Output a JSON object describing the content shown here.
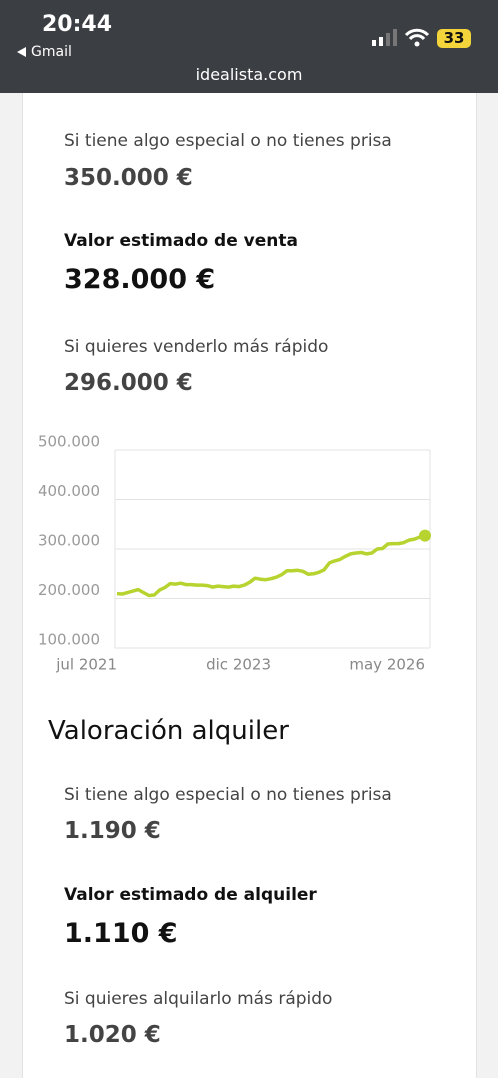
{
  "status_bar": {
    "time": "20:44",
    "back_app": "Gmail",
    "battery": "33",
    "url": "idealista.com"
  },
  "sale": {
    "items": [
      {
        "label": "Si tiene algo especial o no tienes prisa",
        "price": "350.000 €"
      },
      {
        "label": "Valor estimado de venta",
        "price": "328.000 €"
      },
      {
        "label": "Si quieres venderlo más rápido",
        "price": "296.000 €"
      }
    ]
  },
  "chart": {
    "type": "line",
    "color": "#b6d330",
    "grid": true,
    "ylim": [
      100000,
      500000
    ],
    "yticks": [
      {
        "value": 100000,
        "label": "100.000"
      },
      {
        "value": 200000,
        "label": "200.000"
      },
      {
        "value": 300000,
        "label": "300.000"
      },
      {
        "value": 400000,
        "label": "400.000"
      },
      {
        "value": 500000,
        "label": "500.000"
      }
    ],
    "categories": [
      "jul 2021",
      null,
      null,
      null,
      null,
      null,
      null,
      null,
      null,
      null,
      null,
      null,
      null,
      null,
      null,
      null,
      null,
      null,
      null,
      null,
      null,
      null,
      null,
      null,
      null,
      null,
      null,
      null,
      null,
      "dic 2023",
      null,
      null,
      null,
      null,
      null,
      null,
      null,
      null,
      null,
      null,
      null,
      null,
      null,
      null,
      null,
      null,
      null,
      null,
      null,
      null,
      null,
      null,
      null,
      null,
      null,
      null,
      null,
      null,
      "may 2026"
    ],
    "values": [
      210000,
      209000,
      212000,
      215000,
      218000,
      212000,
      206000,
      207000,
      217000,
      222000,
      230000,
      229000,
      231000,
      228000,
      228000,
      227000,
      227000,
      226000,
      223000,
      225000,
      224000,
      223000,
      225000,
      224000,
      227000,
      233000,
      241000,
      239000,
      238000,
      240000,
      243000,
      248000,
      256000,
      256000,
      257000,
      255000,
      249000,
      250000,
      253000,
      258000,
      272000,
      276000,
      279000,
      285000,
      290000,
      292000,
      293000,
      290000,
      292000,
      300000,
      301000,
      310000,
      311000,
      311000,
      313000,
      318000,
      320000,
      324000,
      327000
    ]
  },
  "rent": {
    "title": "Valoración alquiler",
    "items": [
      {
        "label": "Si tiene algo especial o no tienes prisa",
        "price": "1.190 €"
      },
      {
        "label": "Valor estimado de alquiler",
        "price": "1.110 €"
      },
      {
        "label": "Si quieres alquilarlo más rápido",
        "price": "1.020 €"
      }
    ]
  }
}
